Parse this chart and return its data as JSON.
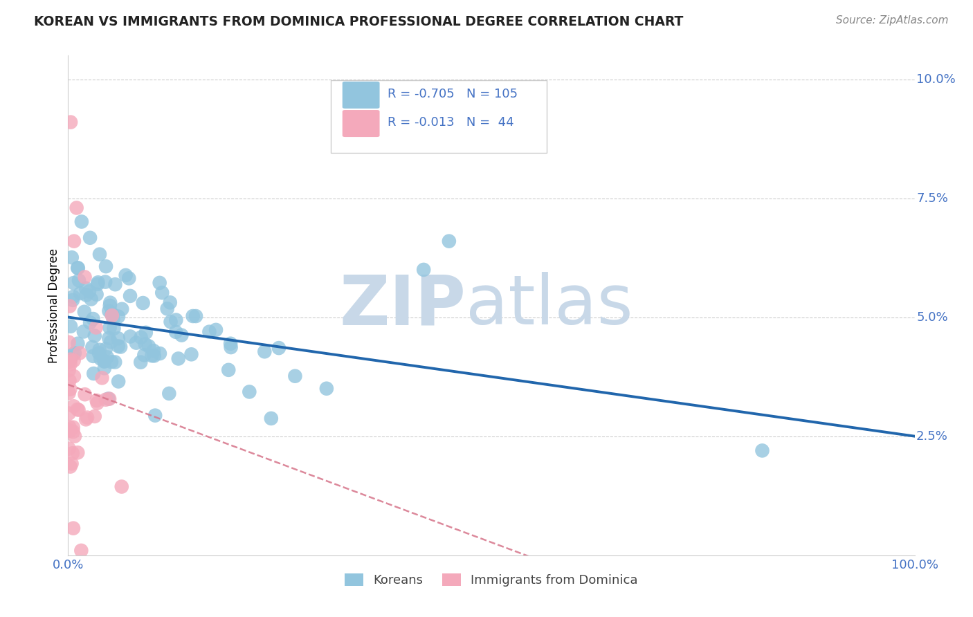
{
  "title": "KOREAN VS IMMIGRANTS FROM DOMINICA PROFESSIONAL DEGREE CORRELATION CHART",
  "source": "Source: ZipAtlas.com",
  "ylabel": "Professional Degree",
  "xlim": [
    0.0,
    1.0
  ],
  "ylim": [
    0.0,
    0.105
  ],
  "korean_R": -0.705,
  "korean_N": 105,
  "dominica_R": -0.013,
  "dominica_N": 44,
  "watermark_zip": "ZIP",
  "watermark_atlas": "atlas",
  "watermark_color": "#c8d8e8",
  "blue_color": "#92C5DE",
  "blue_line_color": "#2166AC",
  "pink_color": "#F4A9BB",
  "pink_line_color": "#D6748A",
  "background_color": "#ffffff",
  "grid_color": "#cccccc",
  "title_color": "#222222",
  "axis_label_color": "#4472c4",
  "legend_r_color": "#4472c4"
}
